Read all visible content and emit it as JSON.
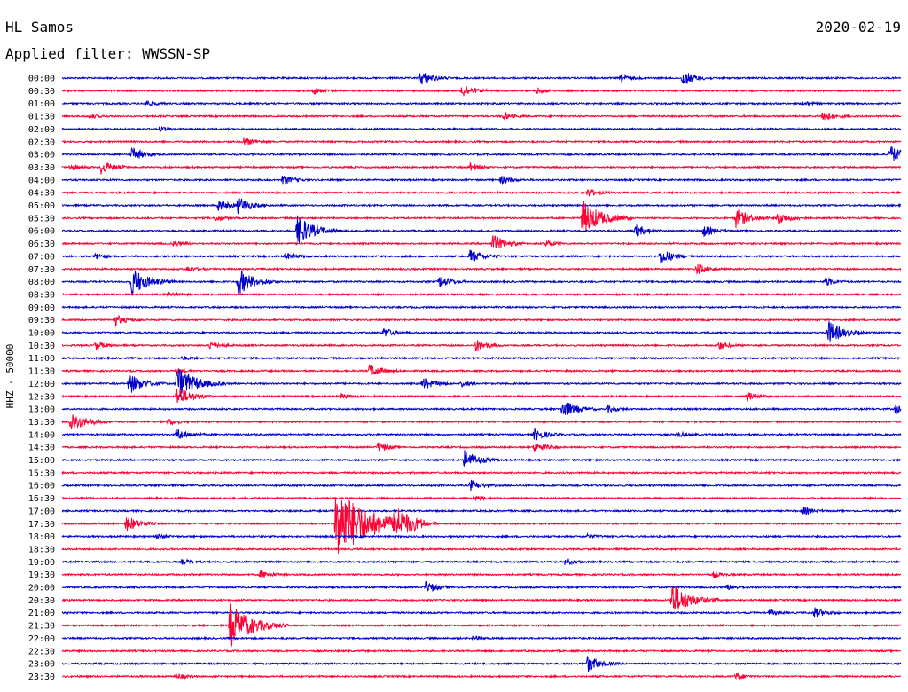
{
  "header": {
    "station": "HL Samos",
    "date": "2020-02-19",
    "filter": "Applied filter: WWSSN-SP"
  },
  "chart_data": {
    "type": "line",
    "ylabel": "HHZ - 50000",
    "row_labels": [
      "00:00",
      "00:30",
      "01:00",
      "01:30",
      "02:00",
      "02:30",
      "03:00",
      "03:30",
      "04:00",
      "04:30",
      "05:00",
      "05:30",
      "06:00",
      "06:30",
      "07:00",
      "07:30",
      "08:00",
      "08:30",
      "09:00",
      "09:30",
      "10:00",
      "10:30",
      "11:00",
      "11:30",
      "12:00",
      "12:30",
      "13:00",
      "13:30",
      "14:00",
      "14:30",
      "15:00",
      "15:30",
      "16:00",
      "16:30",
      "17:00",
      "17:30",
      "18:00",
      "18:30",
      "19:00",
      "19:30",
      "20:00",
      "20:30",
      "21:00",
      "21:30",
      "22:00",
      "22:30",
      "23:00",
      "23:30"
    ],
    "x_range_minutes": [
      0,
      30
    ],
    "colors": [
      "#0000cc",
      "#ff0033"
    ],
    "color_pattern": "alternating by row, starting with blue",
    "events": [
      {
        "row": 0,
        "t": 12.8,
        "amp": 1.1
      },
      {
        "row": 0,
        "t": 22.2,
        "amp": 1.1
      },
      {
        "row": 0,
        "t": 20.0,
        "amp": 0.5
      },
      {
        "row": 1,
        "t": 14.3,
        "amp": 0.9
      },
      {
        "row": 1,
        "t": 9.0,
        "amp": 0.5
      },
      {
        "row": 1,
        "t": 17.0,
        "amp": 0.4
      },
      {
        "row": 2,
        "t": 3.0,
        "amp": 0.4
      },
      {
        "row": 2,
        "t": 26.5,
        "amp": 0.3
      },
      {
        "row": 3,
        "t": 27.2,
        "amp": 0.9
      },
      {
        "row": 3,
        "t": 15.8,
        "amp": 0.5
      },
      {
        "row": 3,
        "t": 1.0,
        "amp": 0.3
      },
      {
        "row": 4,
        "t": 3.5,
        "amp": 0.3
      },
      {
        "row": 5,
        "t": 6.5,
        "amp": 0.6
      },
      {
        "row": 6,
        "t": 2.5,
        "amp": 1.0
      },
      {
        "row": 6,
        "t": 29.6,
        "amp": 1.3
      },
      {
        "row": 7,
        "t": 1.4,
        "amp": 1.0
      },
      {
        "row": 7,
        "t": 14.6,
        "amp": 0.6
      },
      {
        "row": 7,
        "t": 0.3,
        "amp": 0.5
      },
      {
        "row": 8,
        "t": 7.9,
        "amp": 0.7
      },
      {
        "row": 8,
        "t": 15.7,
        "amp": 0.6
      },
      {
        "row": 9,
        "t": 18.8,
        "amp": 0.6
      },
      {
        "row": 10,
        "t": 5.6,
        "amp": 0.9
      },
      {
        "row": 10,
        "t": 6.3,
        "amp": 1.2
      },
      {
        "row": 11,
        "t": 18.6,
        "amp": 2.6
      },
      {
        "row": 11,
        "t": 24.1,
        "amp": 1.4
      },
      {
        "row": 11,
        "t": 25.6,
        "amp": 1.0
      },
      {
        "row": 11,
        "t": 5.5,
        "amp": 0.4
      },
      {
        "row": 12,
        "t": 8.4,
        "amp": 2.2
      },
      {
        "row": 12,
        "t": 20.5,
        "amp": 0.9
      },
      {
        "row": 12,
        "t": 22.9,
        "amp": 0.9
      },
      {
        "row": 13,
        "t": 15.4,
        "amp": 1.3
      },
      {
        "row": 13,
        "t": 17.3,
        "amp": 0.5
      },
      {
        "row": 13,
        "t": 4.0,
        "amp": 0.4
      },
      {
        "row": 14,
        "t": 1.2,
        "amp": 0.4
      },
      {
        "row": 14,
        "t": 14.6,
        "amp": 1.0
      },
      {
        "row": 14,
        "t": 21.4,
        "amp": 1.2
      },
      {
        "row": 14,
        "t": 8.0,
        "amp": 0.5
      },
      {
        "row": 15,
        "t": 22.7,
        "amp": 0.8
      },
      {
        "row": 15,
        "t": 4.5,
        "amp": 0.4
      },
      {
        "row": 16,
        "t": 2.5,
        "amp": 2.0
      },
      {
        "row": 16,
        "t": 6.3,
        "amp": 1.9
      },
      {
        "row": 16,
        "t": 13.5,
        "amp": 0.9
      },
      {
        "row": 16,
        "t": 27.3,
        "amp": 0.6
      },
      {
        "row": 17,
        "t": 3.8,
        "amp": 0.4
      },
      {
        "row": 19,
        "t": 1.9,
        "amp": 0.8
      },
      {
        "row": 20,
        "t": 11.5,
        "amp": 0.7
      },
      {
        "row": 20,
        "t": 27.4,
        "amp": 1.7
      },
      {
        "row": 21,
        "t": 1.2,
        "amp": 0.6
      },
      {
        "row": 21,
        "t": 5.3,
        "amp": 0.6
      },
      {
        "row": 21,
        "t": 14.8,
        "amp": 0.9
      },
      {
        "row": 21,
        "t": 23.5,
        "amp": 0.6
      },
      {
        "row": 22,
        "t": 4.3,
        "amp": 0.3
      },
      {
        "row": 23,
        "t": 11.0,
        "amp": 1.0
      },
      {
        "row": 23,
        "t": 4.1,
        "amp": 0.3
      },
      {
        "row": 24,
        "t": 2.4,
        "amp": 1.5
      },
      {
        "row": 24,
        "t": 4.1,
        "amp": 2.5
      },
      {
        "row": 24,
        "t": 12.9,
        "amp": 0.9
      },
      {
        "row": 24,
        "t": 14.3,
        "amp": 0.4
      },
      {
        "row": 25,
        "t": 4.1,
        "amp": 1.5
      },
      {
        "row": 25,
        "t": 24.5,
        "amp": 0.6
      },
      {
        "row": 25,
        "t": 10.0,
        "amp": 0.4
      },
      {
        "row": 26,
        "t": 17.9,
        "amp": 1.4
      },
      {
        "row": 26,
        "t": 19.5,
        "amp": 0.5
      },
      {
        "row": 26,
        "t": 29.8,
        "amp": 0.6
      },
      {
        "row": 27,
        "t": 0.3,
        "amp": 1.6
      },
      {
        "row": 27,
        "t": 3.8,
        "amp": 0.5
      },
      {
        "row": 28,
        "t": 4.1,
        "amp": 0.9
      },
      {
        "row": 28,
        "t": 16.9,
        "amp": 0.9
      },
      {
        "row": 28,
        "t": 22.0,
        "amp": 0.4
      },
      {
        "row": 29,
        "t": 11.3,
        "amp": 0.7
      },
      {
        "row": 29,
        "t": 16.9,
        "amp": 0.8
      },
      {
        "row": 30,
        "t": 14.4,
        "amp": 1.4
      },
      {
        "row": 32,
        "t": 14.6,
        "amp": 0.8
      },
      {
        "row": 33,
        "t": 14.7,
        "amp": 0.4
      },
      {
        "row": 34,
        "t": 26.5,
        "amp": 0.6
      },
      {
        "row": 35,
        "t": 2.3,
        "amp": 1.2
      },
      {
        "row": 35,
        "t": 9.8,
        "amp": 5.5
      },
      {
        "row": 35,
        "t": 11.9,
        "amp": 2.0
      },
      {
        "row": 36,
        "t": 3.4,
        "amp": 0.4
      },
      {
        "row": 36,
        "t": 18.8,
        "amp": 0.3
      },
      {
        "row": 38,
        "t": 4.3,
        "amp": 0.4
      },
      {
        "row": 38,
        "t": 18.0,
        "amp": 0.5
      },
      {
        "row": 39,
        "t": 7.1,
        "amp": 0.6
      },
      {
        "row": 39,
        "t": 23.3,
        "amp": 0.4
      },
      {
        "row": 40,
        "t": 13.0,
        "amp": 0.9
      },
      {
        "row": 40,
        "t": 23.8,
        "amp": 0.4
      },
      {
        "row": 41,
        "t": 21.8,
        "amp": 2.4
      },
      {
        "row": 42,
        "t": 26.9,
        "amp": 0.8
      },
      {
        "row": 42,
        "t": 25.3,
        "amp": 0.4
      },
      {
        "row": 43,
        "t": 6.0,
        "amp": 3.2
      },
      {
        "row": 44,
        "t": 14.7,
        "amp": 0.3
      },
      {
        "row": 46,
        "t": 18.8,
        "amp": 1.2
      },
      {
        "row": 47,
        "t": 4.1,
        "amp": 0.4
      },
      {
        "row": 47,
        "t": 24.1,
        "amp": 0.5
      }
    ]
  }
}
